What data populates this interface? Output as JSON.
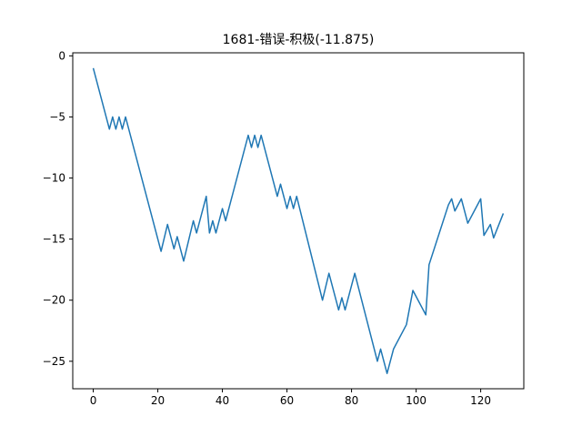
{
  "chart_data": {
    "type": "line",
    "title": "1681-错误-积极(-11.875)",
    "xlabel": "",
    "ylabel": "",
    "xlim": [
      -6.35,
      133.35
    ],
    "ylim": [
      -27.25,
      0.25
    ],
    "xticks": [
      0,
      20,
      40,
      60,
      80,
      100,
      120
    ],
    "yticks": [
      0,
      -5,
      -10,
      -15,
      -20,
      -25
    ],
    "grid": false,
    "line_color": "#1f77b4",
    "series": [
      {
        "x": [
          0,
          5,
          6,
          7,
          8,
          9,
          10,
          21,
          23,
          25,
          26,
          28,
          31,
          32,
          35,
          36,
          37,
          38,
          40,
          41,
          48,
          49,
          50,
          51,
          52,
          57,
          58,
          60,
          61,
          62,
          63,
          71,
          73,
          76,
          77,
          78,
          81,
          88,
          89,
          91,
          92,
          93,
          97,
          99,
          103,
          104,
          110,
          111,
          112,
          114,
          116,
          120,
          121,
          123,
          124,
          127
        ],
        "y": [
          -1,
          -6,
          -5,
          -6,
          -5,
          -6,
          -5,
          -16,
          -13.8,
          -15.8,
          -14.8,
          -16.8,
          -13.5,
          -14.5,
          -11.5,
          -14.5,
          -13.5,
          -14.5,
          -12.5,
          -13.5,
          -6.5,
          -7.5,
          -6.5,
          -7.5,
          -6.5,
          -11.5,
          -10.5,
          -12.5,
          -11.5,
          -12.5,
          -11.5,
          -20,
          -17.8,
          -20.8,
          -19.8,
          -20.8,
          -17.8,
          -25,
          -24,
          -26,
          -25,
          -24,
          -22,
          -19.2,
          -21.2,
          -17.1,
          -12.2,
          -11.7,
          -12.7,
          -11.7,
          -13.7,
          -11.7,
          -14.7,
          -13.8,
          -14.9,
          -12.9
        ],
        "x2": [],
        "y2": []
      }
    ]
  }
}
